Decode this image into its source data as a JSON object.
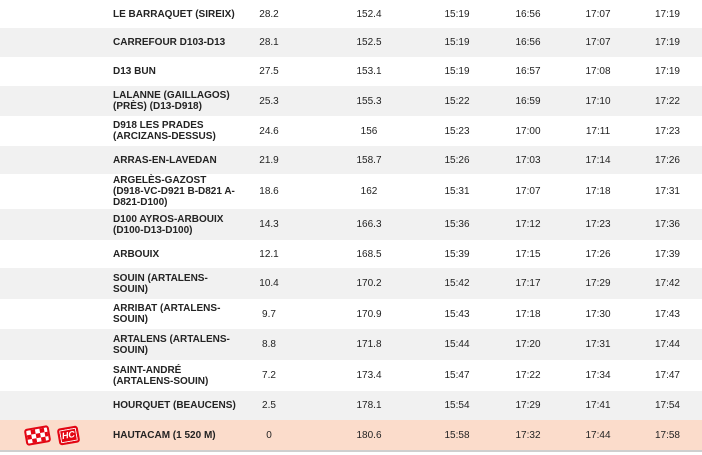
{
  "colors": {
    "text": "#232323",
    "row_bg": "#ffffff",
    "row_alt_bg": "#f1f1f1",
    "highlight_bg": "#fbdccb",
    "accent_red": "#e30613",
    "bottom_rule": "#cfcfcf"
  },
  "table": {
    "rows": [
      {
        "location": "LE BARRAQUET (SIREIX)",
        "km_to_go": "28.2",
        "km_done": "152.4",
        "times": [
          "15:19",
          "16:56",
          "17:07",
          "17:19"
        ]
      },
      {
        "location": "CARREFOUR D103-D13",
        "km_to_go": "28.1",
        "km_done": "152.5",
        "times": [
          "15:19",
          "16:56",
          "17:07",
          "17:19"
        ]
      },
      {
        "location": "D13 BUN",
        "km_to_go": "27.5",
        "km_done": "153.1",
        "times": [
          "15:19",
          "16:57",
          "17:08",
          "17:19"
        ]
      },
      {
        "location": "LALANNE (GAILLAGOS) (PRÈS) (D13-D918)",
        "km_to_go": "25.3",
        "km_done": "155.3",
        "times": [
          "15:22",
          "16:59",
          "17:10",
          "17:22"
        ]
      },
      {
        "location": "D918 LES PRADES (ARCIZANS-DESSUS)",
        "km_to_go": "24.6",
        "km_done": "156",
        "times": [
          "15:23",
          "17:00",
          "17:11",
          "17:23"
        ]
      },
      {
        "location": "ARRAS-EN-LAVEDAN",
        "km_to_go": "21.9",
        "km_done": "158.7",
        "times": [
          "15:26",
          "17:03",
          "17:14",
          "17:26"
        ]
      },
      {
        "location": "ARGELÈS-GAZOST (D918-VC-D921 B-D821 A-D821-D100)",
        "km_to_go": "18.6",
        "km_done": "162",
        "times": [
          "15:31",
          "17:07",
          "17:18",
          "17:31"
        ]
      },
      {
        "location": "D100 AYROS-ARBOUIX (D100-D13-D100)",
        "km_to_go": "14.3",
        "km_done": "166.3",
        "times": [
          "15:36",
          "17:12",
          "17:23",
          "17:36"
        ]
      },
      {
        "location": "ARBOUIX",
        "km_to_go": "12.1",
        "km_done": "168.5",
        "times": [
          "15:39",
          "17:15",
          "17:26",
          "17:39"
        ]
      },
      {
        "location": "SOUIN (ARTALENS-SOUIN)",
        "km_to_go": "10.4",
        "km_done": "170.2",
        "times": [
          "15:42",
          "17:17",
          "17:29",
          "17:42"
        ]
      },
      {
        "location": "ARRIBAT (ARTALENS-SOUIN)",
        "km_to_go": "9.7",
        "km_done": "170.9",
        "times": [
          "15:43",
          "17:18",
          "17:30",
          "17:43"
        ]
      },
      {
        "location": "ARTALENS (ARTALENS-SOUIN)",
        "km_to_go": "8.8",
        "km_done": "171.8",
        "times": [
          "15:44",
          "17:20",
          "17:31",
          "17:44"
        ]
      },
      {
        "location": "SAINT-ANDRÉ (ARTALENS-SOUIN)",
        "km_to_go": "7.2",
        "km_done": "173.4",
        "times": [
          "15:47",
          "17:22",
          "17:34",
          "17:47"
        ]
      },
      {
        "location": "HOURQUET (BEAUCENS)",
        "km_to_go": "2.5",
        "km_done": "178.1",
        "times": [
          "15:54",
          "17:29",
          "17:41",
          "17:54"
        ]
      },
      {
        "location": "HAUTACAM (1 520 M)",
        "km_to_go": "0",
        "km_done": "180.6",
        "times": [
          "15:58",
          "17:32",
          "17:44",
          "17:58"
        ],
        "highlight": true,
        "icons": [
          {
            "name": "checkered-flag-icon",
            "label": ""
          },
          {
            "name": "hc-climb-icon",
            "label": "HC"
          }
        ]
      }
    ]
  }
}
